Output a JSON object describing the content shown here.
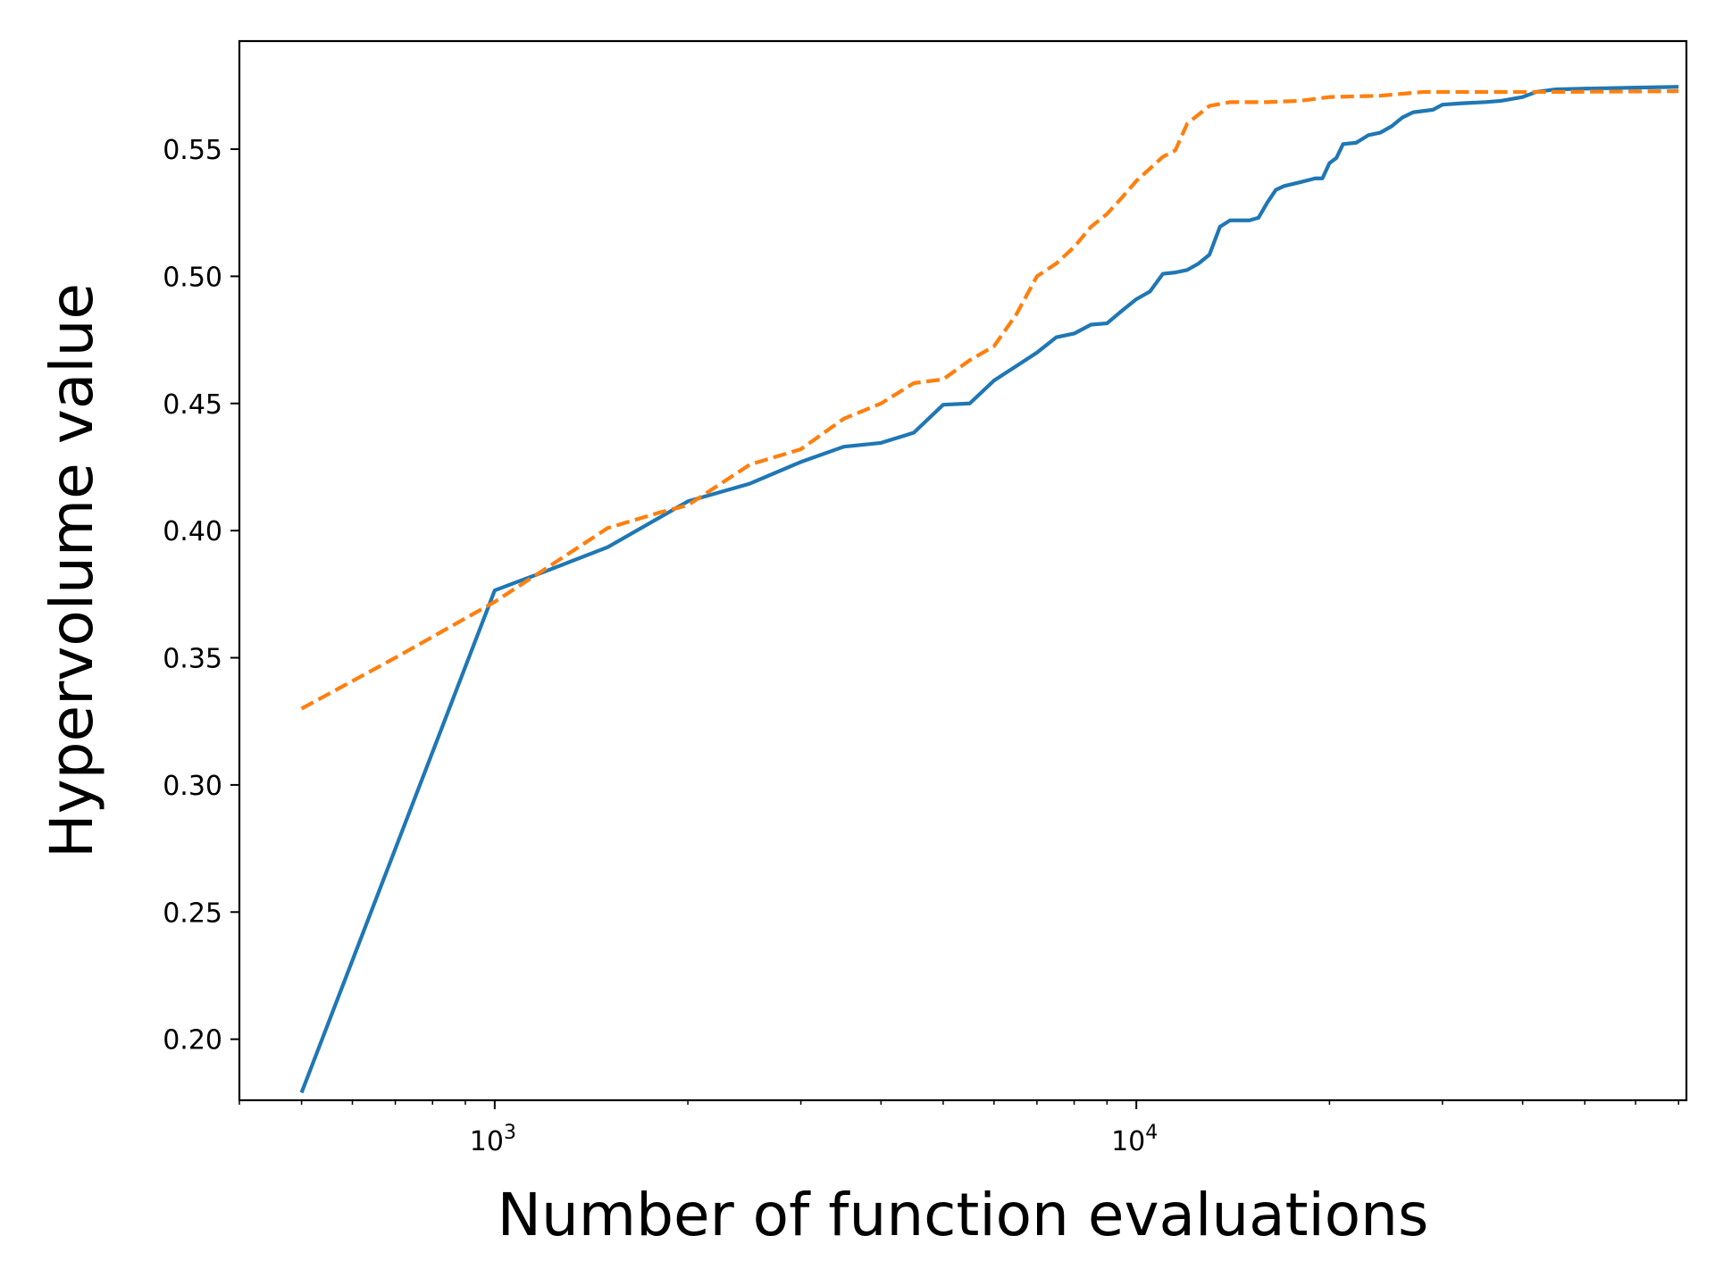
{
  "chart_data": {
    "type": "line",
    "title": "",
    "xlabel": "Number of function evaluations",
    "ylabel": "Hypervolume value",
    "xscale": "log",
    "xlim": [
      400,
      72000
    ],
    "ylim": [
      0.176,
      0.5925
    ],
    "grid": false,
    "legend": "none",
    "x_ticks": [
      {
        "value": 1000,
        "base": "10",
        "exp": "3"
      },
      {
        "value": 10000,
        "base": "10",
        "exp": "4"
      }
    ],
    "y_ticks": [
      0.2,
      0.25,
      0.3,
      0.35,
      0.4,
      0.45,
      0.5,
      0.55
    ],
    "y_tick_labels": [
      "0.20",
      "0.25",
      "0.30",
      "0.35",
      "0.40",
      "0.45",
      "0.50",
      "0.55"
    ],
    "series": [
      {
        "color": "#1f77b4",
        "style": "solid",
        "points": [
          [
            500,
            0.179
          ],
          [
            1000,
            0.3765
          ],
          [
            1200,
            0.384
          ],
          [
            1500,
            0.3935
          ],
          [
            2000,
            0.4115
          ],
          [
            2500,
            0.4185
          ],
          [
            3000,
            0.427
          ],
          [
            3500,
            0.433
          ],
          [
            4000,
            0.4345
          ],
          [
            4500,
            0.4385
          ],
          [
            5000,
            0.4495
          ],
          [
            5500,
            0.45
          ],
          [
            6000,
            0.459
          ],
          [
            7000,
            0.47
          ],
          [
            7500,
            0.476
          ],
          [
            8000,
            0.4775
          ],
          [
            8500,
            0.481
          ],
          [
            9000,
            0.4815
          ],
          [
            9500,
            0.4865
          ],
          [
            10000,
            0.491
          ],
          [
            10500,
            0.494
          ],
          [
            11000,
            0.501
          ],
          [
            11500,
            0.5015
          ],
          [
            12000,
            0.5025
          ],
          [
            12500,
            0.505
          ],
          [
            13000,
            0.5085
          ],
          [
            13500,
            0.5195
          ],
          [
            14000,
            0.522
          ],
          [
            15000,
            0.522
          ],
          [
            15500,
            0.523
          ],
          [
            16000,
            0.529
          ],
          [
            16500,
            0.534
          ],
          [
            17000,
            0.5355
          ],
          [
            18000,
            0.537
          ],
          [
            19000,
            0.5385
          ],
          [
            19500,
            0.5385
          ],
          [
            20000,
            0.5445
          ],
          [
            20500,
            0.5465
          ],
          [
            21000,
            0.552
          ],
          [
            22000,
            0.5525
          ],
          [
            23000,
            0.5555
          ],
          [
            24000,
            0.5565
          ],
          [
            25000,
            0.559
          ],
          [
            26000,
            0.5625
          ],
          [
            27000,
            0.5645
          ],
          [
            29000,
            0.5655
          ],
          [
            30000,
            0.5675
          ],
          [
            32000,
            0.568
          ],
          [
            35000,
            0.5685
          ],
          [
            37000,
            0.569
          ],
          [
            40000,
            0.5705
          ],
          [
            42000,
            0.5725
          ],
          [
            45000,
            0.5735
          ],
          [
            50000,
            0.5738
          ],
          [
            60000,
            0.5742
          ],
          [
            70000,
            0.5745
          ]
        ]
      },
      {
        "color": "#ff7f0e",
        "style": "dashed",
        "points": [
          [
            500,
            0.33
          ],
          [
            700,
            0.35
          ],
          [
            1000,
            0.372
          ],
          [
            1200,
            0.385
          ],
          [
            1500,
            0.401
          ],
          [
            1800,
            0.407
          ],
          [
            2000,
            0.41
          ],
          [
            2500,
            0.426
          ],
          [
            3000,
            0.432
          ],
          [
            3500,
            0.444
          ],
          [
            4000,
            0.45
          ],
          [
            4500,
            0.458
          ],
          [
            5000,
            0.4595
          ],
          [
            5500,
            0.467
          ],
          [
            6000,
            0.4725
          ],
          [
            6500,
            0.485
          ],
          [
            7000,
            0.5
          ],
          [
            7500,
            0.505
          ],
          [
            8000,
            0.5115
          ],
          [
            8500,
            0.5195
          ],
          [
            9000,
            0.5245
          ],
          [
            9500,
            0.531
          ],
          [
            10000,
            0.5375
          ],
          [
            11000,
            0.547
          ],
          [
            11500,
            0.5495
          ],
          [
            12000,
            0.56
          ],
          [
            13000,
            0.567
          ],
          [
            14000,
            0.5685
          ],
          [
            16000,
            0.5685
          ],
          [
            18000,
            0.569
          ],
          [
            20000,
            0.5705
          ],
          [
            24000,
            0.571
          ],
          [
            28000,
            0.5725
          ],
          [
            35000,
            0.5725
          ],
          [
            45000,
            0.5725
          ],
          [
            70000,
            0.5728
          ]
        ]
      }
    ]
  }
}
